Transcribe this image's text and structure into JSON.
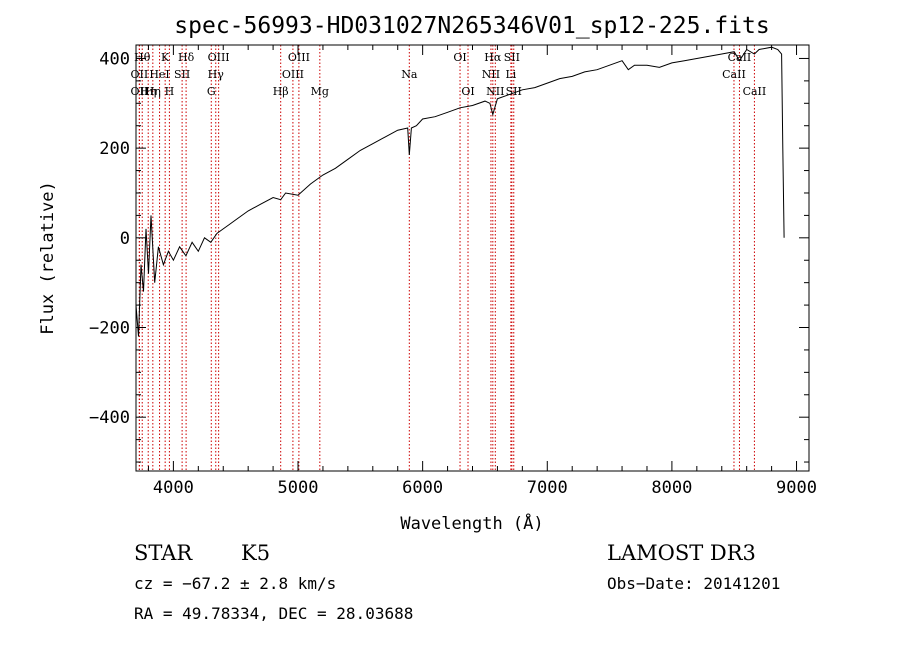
{
  "chart_data": {
    "type": "line",
    "title": "spec-56993-HD031027N265346V01_sp12-225.fits",
    "xlabel": "Wavelength (Å)",
    "ylabel": "Flux (relative)",
    "xlim": [
      3700,
      9100
    ],
    "ylim": [
      -520,
      430
    ],
    "x_ticks": [
      4000,
      5000,
      6000,
      7000,
      8000,
      9000
    ],
    "y_ticks": [
      -400,
      -200,
      0,
      200,
      400
    ],
    "grid": false,
    "line_color": "#000000",
    "marker_color": "#cc0000",
    "series": [
      {
        "x": [
          3700,
          3720,
          3740,
          3760,
          3780,
          3800,
          3820,
          3850,
          3880,
          3920,
          3960,
          4000,
          4050,
          4100,
          4150,
          4200,
          4250,
          4300,
          4350,
          4400,
          4450,
          4500,
          4600,
          4700,
          4800,
          4861,
          4900,
          5000,
          5100,
          5200,
          5300,
          5400,
          5500,
          5600,
          5700,
          5800,
          5880,
          5893,
          5910,
          5950,
          6000,
          6100,
          6200,
          6300,
          6400,
          6500,
          6540,
          6563,
          6600,
          6700,
          6800,
          6900,
          7000,
          7100,
          7200,
          7300,
          7400,
          7500,
          7600,
          7650,
          7700,
          7800,
          7900,
          8000,
          8100,
          8200,
          8300,
          8400,
          8500,
          8542,
          8600,
          8662,
          8700,
          8800,
          8850,
          8880,
          8890,
          8900
        ],
        "y": [
          -150,
          -220,
          -60,
          -120,
          20,
          -80,
          50,
          -100,
          -20,
          -60,
          -30,
          -50,
          -20,
          -40,
          -10,
          -30,
          0,
          -10,
          10,
          20,
          30,
          40,
          60,
          75,
          90,
          85,
          100,
          95,
          120,
          140,
          155,
          175,
          195,
          210,
          225,
          240,
          245,
          185,
          245,
          250,
          265,
          270,
          280,
          290,
          295,
          305,
          300,
          275,
          310,
          320,
          330,
          335,
          345,
          355,
          360,
          370,
          375,
          385,
          395,
          375,
          385,
          385,
          380,
          390,
          395,
          400,
          405,
          410,
          415,
          395,
          420,
          410,
          420,
          425,
          420,
          410,
          200,
          0
        ]
      }
    ],
    "markers": [
      {
        "x": 3750,
        "label": "Hθ",
        "row": 1
      },
      {
        "x": 3727,
        "label": "OII",
        "row": 2
      },
      {
        "x": 3727,
        "label": "OII",
        "row": 3
      },
      {
        "x": 3798,
        "label": "Hη",
        "row": 3
      },
      {
        "x": 3835,
        "label": "Hη",
        "row": 3
      },
      {
        "x": 3889,
        "label": "HeI",
        "row": 2
      },
      {
        "x": 3934,
        "label": "K",
        "row": 1
      },
      {
        "x": 3968,
        "label": "H",
        "row": 3
      },
      {
        "x": 4070,
        "label": "SII",
        "row": 2
      },
      {
        "x": 4102,
        "label": "Hδ",
        "row": 1
      },
      {
        "x": 4304,
        "label": "G",
        "row": 3
      },
      {
        "x": 4340,
        "label": "Hγ",
        "row": 2
      },
      {
        "x": 4363,
        "label": "OIII",
        "row": 1
      },
      {
        "x": 4861,
        "label": "Hβ",
        "row": 3
      },
      {
        "x": 4959,
        "label": "OIII",
        "row": 2
      },
      {
        "x": 5007,
        "label": "OIII",
        "row": 1
      },
      {
        "x": 5175,
        "label": "Mg",
        "row": 3
      },
      {
        "x": 5893,
        "label": "Na",
        "row": 2
      },
      {
        "x": 6300,
        "label": "OI",
        "row": 1
      },
      {
        "x": 6364,
        "label": "OI",
        "row": 3
      },
      {
        "x": 6548,
        "label": "NII",
        "row": 2
      },
      {
        "x": 6563,
        "label": "Hα",
        "row": 1
      },
      {
        "x": 6583,
        "label": "NII",
        "row": 3
      },
      {
        "x": 6708,
        "label": "Li",
        "row": 2
      },
      {
        "x": 6716,
        "label": "SII",
        "row": 1
      },
      {
        "x": 6731,
        "label": "SII",
        "row": 3
      },
      {
        "x": 8498,
        "label": "CaII",
        "row": 2
      },
      {
        "x": 8542,
        "label": "CaII",
        "row": 1
      },
      {
        "x": 8662,
        "label": "CaII",
        "row": 3
      }
    ]
  },
  "info": {
    "class": "STAR",
    "subclass": "K5",
    "survey": "LAMOST DR3",
    "cz": "cz = −67.2 ± 2.8 km/s",
    "obs_date": "Obs−Date: 20141201",
    "coords": "RA =  49.78334, DEC =  28.03688"
  }
}
